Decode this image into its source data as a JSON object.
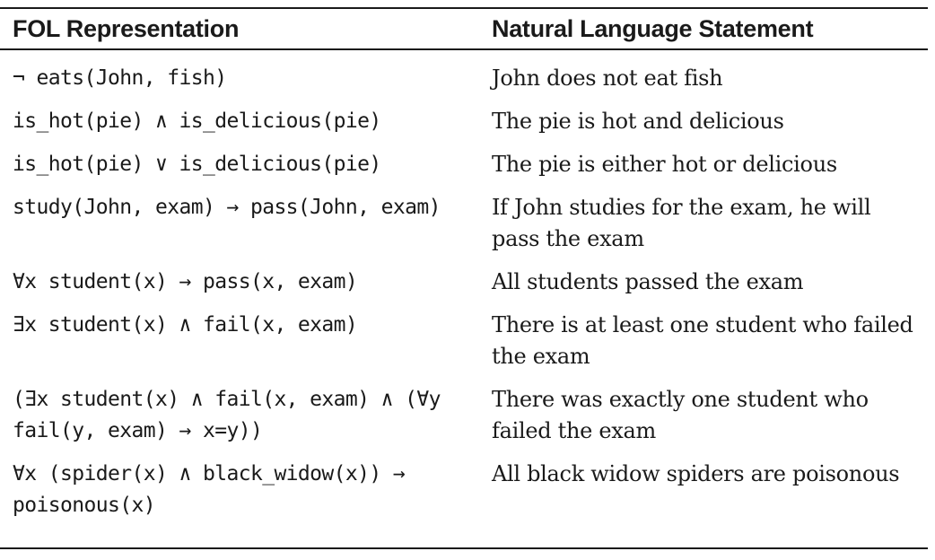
{
  "table": {
    "headers": {
      "fol": "FOL Representation",
      "natural": "Natural Language Statement"
    },
    "rows": [
      {
        "fol": "¬ eats(John, fish)",
        "natural": "John does not eat fish"
      },
      {
        "fol": "is_hot(pie) ∧ is_delicious(pie)",
        "natural": "The pie is hot and delicious"
      },
      {
        "fol": "is_hot(pie) ∨ is_delicious(pie)",
        "natural": "The pie is either hot or delicious"
      },
      {
        "fol": "study(John, exam) → pass(John, exam)",
        "natural": "If John studies for the exam, he will pass the exam"
      },
      {
        "fol": "∀x student(x) → pass(x, exam)",
        "natural": "All students passed the exam"
      },
      {
        "fol": "∃x student(x) ∧ fail(x, exam)",
        "natural": "There is at least one student who failed the exam"
      },
      {
        "fol": "(∃x student(x) ∧ fail(x, exam) ∧ (∀y fail(y, exam) → x=y))",
        "natural": "There was exactly one student who failed the exam"
      },
      {
        "fol": "∀x (spider(x) ∧ black_widow(x)) → poisonous(x)",
        "natural": "All black widow spiders are poisonous"
      }
    ]
  }
}
